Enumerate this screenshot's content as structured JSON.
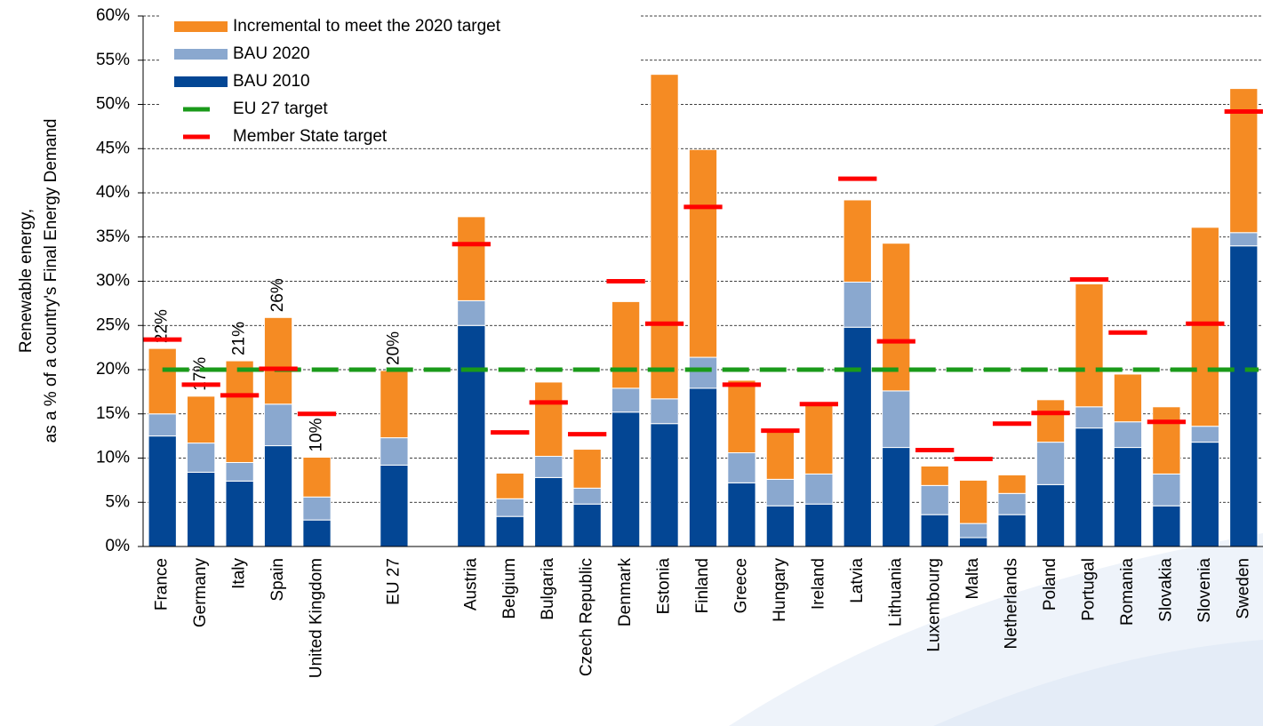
{
  "chart_data": {
    "type": "stacked_bar",
    "y_label": [
      "Renewable energy,",
      "as a % of a country's Final Energy Demand"
    ],
    "categories": [
      "France",
      "Germany",
      "Italy",
      "Spain",
      "United Kingdom",
      null,
      "EU 27",
      null,
      "Austria",
      "Belgium",
      "Bulgaria",
      "Czech Republic",
      "Denmark",
      "Estonia",
      "Finland",
      "Greece",
      "Hungary",
      "Ireland",
      "Latvia",
      "Lithuania",
      "Luxembourg",
      "Malta",
      "Netherlands",
      "Poland",
      "Portugal",
      "Romania",
      "Slovakia",
      "Slovenia",
      "Sweden"
    ],
    "series": [
      {
        "name": "BAU 2010",
        "color": "#034694",
        "values": [
          12.5,
          8.4,
          7.4,
          11.4,
          3.0,
          null,
          9.2,
          null,
          25.0,
          3.4,
          7.8,
          4.8,
          15.2,
          13.9,
          17.9,
          7.2,
          4.6,
          4.8,
          24.8,
          11.2,
          3.6,
          1.0,
          3.6,
          7.0,
          13.4,
          11.2,
          4.6,
          11.8,
          34.0
        ]
      },
      {
        "name": "BAU 2020",
        "color": "#8aa8cf",
        "values": [
          2.5,
          3.3,
          2.1,
          4.7,
          2.6,
          null,
          3.1,
          null,
          2.8,
          2.0,
          2.4,
          1.8,
          2.7,
          2.8,
          3.5,
          3.4,
          3.0,
          3.4,
          5.1,
          6.4,
          3.3,
          1.6,
          2.4,
          4.8,
          2.4,
          2.9,
          3.6,
          1.8,
          1.5
        ]
      },
      {
        "name": "Incremental to meet the 2020 target",
        "color": "#f58b23",
        "values": [
          7.4,
          5.3,
          11.5,
          9.8,
          4.5,
          null,
          7.6,
          null,
          9.5,
          2.9,
          8.4,
          4.4,
          9.8,
          36.7,
          23.5,
          8.2,
          5.4,
          7.8,
          9.3,
          16.7,
          2.2,
          4.9,
          2.1,
          4.8,
          13.9,
          5.4,
          7.6,
          22.5,
          16.3
        ]
      }
    ],
    "targets": {
      "name": "Member State target",
      "color": "#ff0000",
      "values": [
        23.4,
        18.3,
        17.1,
        20.1,
        15.0,
        null,
        null,
        null,
        34.2,
        12.9,
        16.3,
        12.7,
        30.0,
        25.2,
        38.4,
        18.3,
        13.1,
        16.1,
        41.6,
        23.2,
        10.9,
        9.9,
        13.9,
        15.1,
        30.2,
        24.2,
        14.1,
        25.2,
        49.2
      ]
    },
    "reference_line": {
      "name": "EU 27 target",
      "color": "#1a9a1a",
      "value": 20
    },
    "annotations": [
      "22%",
      "17%",
      "21%",
      "26%",
      "10%",
      null,
      "20%"
    ],
    "ylim": [
      0,
      60
    ],
    "yticks": [
      {
        "value": 0,
        "label": "0%"
      },
      {
        "value": 5,
        "label": "5%"
      },
      {
        "value": 10,
        "label": "10%"
      },
      {
        "value": 15,
        "label": "15%"
      },
      {
        "value": 20,
        "label": "20%"
      },
      {
        "value": 25,
        "label": "25%"
      },
      {
        "value": 30,
        "label": "30%"
      },
      {
        "value": 35,
        "label": "35%"
      },
      {
        "value": 40,
        "label": "40%"
      },
      {
        "value": 45,
        "label": "45%"
      },
      {
        "value": 50,
        "label": "50%"
      },
      {
        "value": 55,
        "label": "55%"
      },
      {
        "value": 60,
        "label": "60%"
      }
    ],
    "grid": true
  }
}
